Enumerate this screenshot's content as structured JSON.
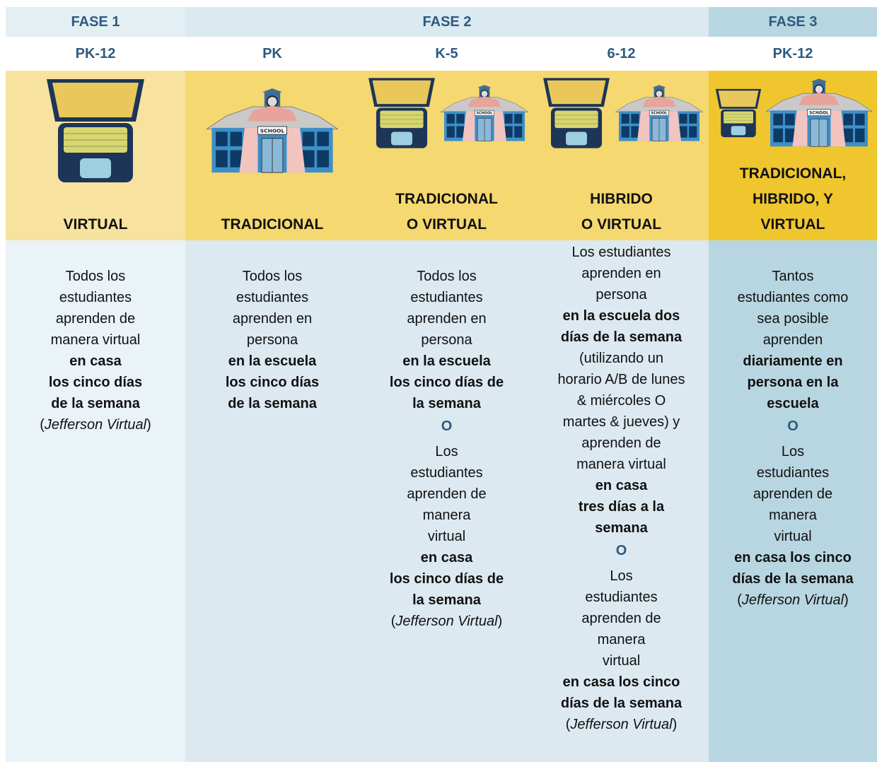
{
  "phases": [
    {
      "label": "FASE 1"
    },
    {
      "label": "FASE 2"
    },
    {
      "label": "FASE 3"
    }
  ],
  "columns": [
    {
      "grade": "PK-12",
      "mode": [
        "VIRTUAL"
      ],
      "description": [
        [
          {
            "text": "Todos los"
          }
        ],
        [
          {
            "text": "estudiantes"
          }
        ],
        [
          {
            "text": "aprenden de"
          }
        ],
        [
          {
            "text": "manera virtual"
          }
        ],
        [
          {
            "text": "en casa",
            "style": "bold"
          }
        ],
        [
          {
            "text": "los cinco días",
            "style": "bold"
          }
        ],
        [
          {
            "text": "de la semana",
            "style": "bold"
          }
        ],
        [
          {
            "text": "("
          },
          {
            "text": "Jefferson Virtual",
            "style": "italic"
          },
          {
            "text": ")"
          }
        ]
      ]
    },
    {
      "grade": "PK",
      "mode": [
        "TRADICIONAL"
      ],
      "description": [
        [
          {
            "text": "Todos los"
          }
        ],
        [
          {
            "text": "estudiantes"
          }
        ],
        [
          {
            "text": "aprenden en"
          }
        ],
        [
          {
            "text": "persona"
          }
        ],
        [
          {
            "text": "en la escuela",
            "style": "bold"
          }
        ],
        [
          {
            "text": "los cinco días",
            "style": "bold"
          }
        ],
        [
          {
            "text": "de la semana",
            "style": "bold"
          }
        ]
      ]
    },
    {
      "grade": "K-5",
      "mode": [
        "TRADICIONAL",
        "O VIRTUAL"
      ],
      "description": [
        [
          {
            "text": "Todos los"
          }
        ],
        [
          {
            "text": "estudiantes"
          }
        ],
        [
          {
            "text": "aprenden en"
          }
        ],
        [
          {
            "text": "persona"
          }
        ],
        [
          {
            "text": "en la escuela",
            "style": "bold"
          }
        ],
        [
          {
            "text": "los cinco días de",
            "style": "bold"
          }
        ],
        [
          {
            "text": "la semana",
            "style": "bold"
          }
        ],
        [
          {
            "text": "O",
            "style": "accent"
          }
        ],
        [
          {
            "text": "Los"
          }
        ],
        [
          {
            "text": "estudiantes"
          }
        ],
        [
          {
            "text": "aprenden de"
          }
        ],
        [
          {
            "text": "manera"
          }
        ],
        [
          {
            "text": "virtual"
          }
        ],
        [
          {
            "text": "en casa",
            "style": "bold"
          }
        ],
        [
          {
            "text": "los cinco días de",
            "style": "bold"
          }
        ],
        [
          {
            "text": "la semana",
            "style": "bold"
          }
        ],
        [
          {
            "text": "("
          },
          {
            "text": "Jefferson Virtual",
            "style": "italic"
          },
          {
            "text": ")"
          }
        ]
      ]
    },
    {
      "grade": "6-12",
      "mode": [
        "HIBRIDO",
        "O VIRTUAL"
      ],
      "description": [
        [
          {
            "text": "Los estudiantes"
          }
        ],
        [
          {
            "text": "aprenden en"
          }
        ],
        [
          {
            "text": "persona"
          }
        ],
        [
          {
            "text": "en la escuela dos",
            "style": "bold"
          }
        ],
        [
          {
            "text": "días de la semana",
            "style": "bold"
          }
        ],
        [
          {
            "text": "(utilizando un"
          }
        ],
        [
          {
            "text": "horario A/B de lunes"
          }
        ],
        [
          {
            "text": "& miércoles O"
          }
        ],
        [
          {
            "text": "martes & jueves) y"
          }
        ],
        [
          {
            "text": "aprenden de"
          }
        ],
        [
          {
            "text": "manera virtual"
          }
        ],
        [
          {
            "text": "en casa",
            "style": "bold"
          }
        ],
        [
          {
            "text": "tres días a la",
            "style": "bold"
          }
        ],
        [
          {
            "text": "semana",
            "style": "bold"
          }
        ],
        [
          {
            "text": "O",
            "style": "accent"
          }
        ],
        [
          {
            "text": "Los"
          }
        ],
        [
          {
            "text": "estudiantes"
          }
        ],
        [
          {
            "text": "aprenden de"
          }
        ],
        [
          {
            "text": "manera"
          }
        ],
        [
          {
            "text": "virtual"
          }
        ],
        [
          {
            "text": "en casa los cinco",
            "style": "bold"
          }
        ],
        [
          {
            "text": "días de la semana",
            "style": "bold"
          }
        ],
        [
          {
            "text": "("
          },
          {
            "text": "Jefferson Virtual",
            "style": "italic"
          },
          {
            "text": ")"
          }
        ]
      ]
    },
    {
      "grade": "PK-12",
      "mode": [
        "TRADICIONAL,",
        "HIBRIDO, Y",
        "VIRTUAL"
      ],
      "description": [
        [
          {
            "text": "Tantos"
          }
        ],
        [
          {
            "text": "estudiantes como"
          }
        ],
        [
          {
            "text": "sea posible"
          }
        ],
        [
          {
            "text": "aprenden"
          }
        ],
        [
          {
            "text": "diariamente en",
            "style": "bold"
          }
        ],
        [
          {
            "text": "persona en la",
            "style": "bold"
          }
        ],
        [
          {
            "text": "escuela",
            "style": "bold"
          }
        ],
        [
          {
            "text": "O",
            "style": "accent"
          }
        ],
        [
          {
            "text": "Los"
          }
        ],
        [
          {
            "text": "estudiantes"
          }
        ],
        [
          {
            "text": "aprenden de"
          }
        ],
        [
          {
            "text": "manera"
          }
        ],
        [
          {
            "text": "virtual"
          }
        ],
        [
          {
            "text": "en casa los cinco",
            "style": "bold"
          }
        ],
        [
          {
            "text": "días de la semana",
            "style": "bold"
          }
        ],
        [
          {
            "text": "("
          },
          {
            "text": "Jefferson Virtual",
            "style": "italic"
          },
          {
            "text": ")"
          }
        ]
      ]
    }
  ]
}
